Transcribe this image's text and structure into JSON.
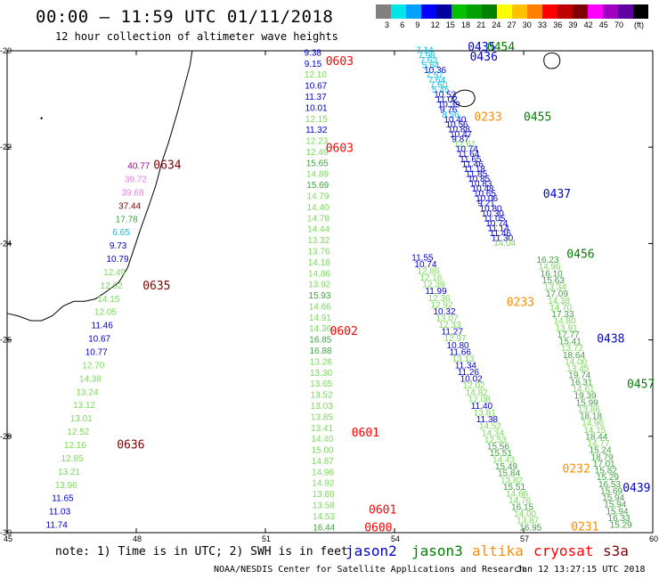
{
  "header": {
    "title": "00:00 – 11:59 UTC 01/11/2018",
    "subtitle": "12 hour collection of altimeter wave heights"
  },
  "colorbar": {
    "colors": [
      "#808080",
      "#00e5e5",
      "#00a0ff",
      "#0000ff",
      "#0000a0",
      "#00c000",
      "#00a000",
      "#008000",
      "#ffff00",
      "#ffc000",
      "#ff8000",
      "#ff0000",
      "#c00000",
      "#800000",
      "#ff00ff",
      "#a000c0",
      "#6000a0",
      "#000000"
    ],
    "labels": [
      "3",
      "6",
      "9",
      "12",
      "15",
      "18",
      "21",
      "24",
      "27",
      "30",
      "33",
      "36",
      "39",
      "42",
      "45",
      "70"
    ],
    "unit": "(ft)"
  },
  "axes": {
    "x_ticks": [
      "45",
      "48",
      "51",
      "54",
      "57",
      "60"
    ],
    "y_ticks": [
      "-20",
      "-22",
      "-24",
      "-26",
      "-28",
      "-30"
    ]
  },
  "palette": {
    "jason2": "#0000c8",
    "jason3": "#008000",
    "altika": "#ff8c00",
    "cryosat": "#ff0000",
    "s3a": "#800000",
    "light_green": "#7ad95a",
    "dark_green": "#40a040",
    "cyan": "#00bfe5",
    "pink": "#e080e0",
    "purple": "#a000a0"
  },
  "tracks": [
    {
      "id": "t1",
      "time": "0603",
      "time2": "0603",
      "satellite": "cryosat",
      "lon0": 51.45,
      "lat0": -20.0,
      "lon1": 51.0,
      "lat1": -30.0
    },
    {
      "id": "t2",
      "time": "0602",
      "time2": "0601",
      "time3": "0601",
      "time4": "0600",
      "satellite": "cryosat",
      "lon0": 51.8,
      "lat0": -21.0,
      "lon1": 53.7,
      "lat1": -30.0
    }
  ],
  "observations": {
    "track_a": [
      {
        "v": "9.38",
        "c": "#0000c8"
      },
      {
        "v": "9.15",
        "c": "#0000c8"
      },
      {
        "v": "12.10",
        "c": "#7ad95a"
      },
      {
        "v": "10.67",
        "c": "#0000c8"
      },
      {
        "v": "11.37",
        "c": "#0000c8"
      },
      {
        "v": "10.01",
        "c": "#0000c8"
      },
      {
        "v": "12.15",
        "c": "#7ad95a"
      },
      {
        "v": "11.32",
        "c": "#0000c8"
      },
      {
        "v": "12.23",
        "c": "#7ad95a"
      },
      {
        "v": "12.49",
        "c": "#7ad95a"
      },
      {
        "v": "15.65",
        "c": "#40a040"
      },
      {
        "v": "14.89",
        "c": "#7ad95a"
      },
      {
        "v": "15.69",
        "c": "#40a040"
      },
      {
        "v": "14.79",
        "c": "#7ad95a"
      },
      {
        "v": "14.40",
        "c": "#7ad95a"
      },
      {
        "v": "14.78",
        "c": "#7ad95a"
      },
      {
        "v": "14.44",
        "c": "#7ad95a"
      },
      {
        "v": "13.32",
        "c": "#7ad95a"
      },
      {
        "v": "13.76",
        "c": "#7ad95a"
      },
      {
        "v": "14.18",
        "c": "#7ad95a"
      },
      {
        "v": "14.86",
        "c": "#7ad95a"
      },
      {
        "v": "13.92",
        "c": "#7ad95a"
      },
      {
        "v": "15.93",
        "c": "#40a040"
      },
      {
        "v": "14.66",
        "c": "#7ad95a"
      },
      {
        "v": "14.91",
        "c": "#7ad95a"
      },
      {
        "v": "14.36",
        "c": "#7ad95a"
      },
      {
        "v": "16.85",
        "c": "#40a040"
      },
      {
        "v": "16.88",
        "c": "#40a040"
      },
      {
        "v": "13.26",
        "c": "#7ad95a"
      },
      {
        "v": "13.30",
        "c": "#7ad95a"
      },
      {
        "v": "13.65",
        "c": "#7ad95a"
      },
      {
        "v": "13.52",
        "c": "#7ad95a"
      },
      {
        "v": "13.03",
        "c": "#7ad95a"
      },
      {
        "v": "13.85",
        "c": "#7ad95a"
      },
      {
        "v": "13.41",
        "c": "#7ad95a"
      },
      {
        "v": "14.40",
        "c": "#7ad95a"
      },
      {
        "v": "15.00",
        "c": "#7ad95a"
      },
      {
        "v": "14.87",
        "c": "#7ad95a"
      },
      {
        "v": "14.98",
        "c": "#7ad95a"
      },
      {
        "v": "14.92",
        "c": "#7ad95a"
      },
      {
        "v": "13.88",
        "c": "#7ad95a"
      },
      {
        "v": "13.58",
        "c": "#7ad95a"
      },
      {
        "v": "14.53",
        "c": "#7ad95a"
      },
      {
        "v": "16.44",
        "c": "#40a040"
      }
    ],
    "track_b": [
      {
        "v": "40.77",
        "c": "#a000a0"
      },
      {
        "v": "39.72",
        "c": "#e080e0"
      },
      {
        "v": "39.68",
        "c": "#e080e0"
      },
      {
        "v": "37.44",
        "c": "#800000"
      },
      {
        "v": "17.78",
        "c": "#40a040"
      },
      {
        "v": "6.65",
        "c": "#00bfe5"
      },
      {
        "v": "9.73",
        "c": "#0000c8"
      },
      {
        "v": "10.79",
        "c": "#0000c8"
      },
      {
        "v": "12.49",
        "c": "#7ad95a"
      },
      {
        "v": "12.92",
        "c": "#7ad95a"
      },
      {
        "v": "14.15",
        "c": "#7ad95a"
      },
      {
        "v": "12.05",
        "c": "#7ad95a"
      },
      {
        "v": "11.46",
        "c": "#0000c8"
      },
      {
        "v": "10.67",
        "c": "#0000c8"
      },
      {
        "v": "10.77",
        "c": "#0000c8"
      },
      {
        "v": "12.70",
        "c": "#7ad95a"
      },
      {
        "v": "14.38",
        "c": "#7ad95a"
      },
      {
        "v": "13.24",
        "c": "#7ad95a"
      },
      {
        "v": "13.12",
        "c": "#7ad95a"
      },
      {
        "v": "13.01",
        "c": "#7ad95a"
      },
      {
        "v": "12.52",
        "c": "#7ad95a"
      },
      {
        "v": "12.16",
        "c": "#7ad95a"
      },
      {
        "v": "12.85",
        "c": "#7ad95a"
      },
      {
        "v": "13.21",
        "c": "#7ad95a"
      },
      {
        "v": "13.96",
        "c": "#7ad95a"
      },
      {
        "v": "11.65",
        "c": "#0000c8"
      },
      {
        "v": "11.03",
        "c": "#0000c8"
      },
      {
        "v": "11.74",
        "c": "#0000c8"
      }
    ],
    "track_c": [
      {
        "v": "7.14",
        "c": "#00bfe5"
      },
      {
        "v": "7.98",
        "c": "#00bfe5"
      },
      {
        "v": "7.63",
        "c": "#00bfe5"
      },
      {
        "v": "5.64",
        "c": "#00bfe5"
      },
      {
        "v": "10.36",
        "c": "#0000c8"
      },
      {
        "v": "7.57",
        "c": "#00bfe5"
      },
      {
        "v": "7.64",
        "c": "#00bfe5"
      },
      {
        "v": "7.60",
        "c": "#00bfe5"
      },
      {
        "v": "5.45",
        "c": "#00bfe5"
      },
      {
        "v": "10.53",
        "c": "#0000c8"
      },
      {
        "v": "11.02",
        "c": "#0000c8"
      },
      {
        "v": "10.39",
        "c": "#0000c8"
      },
      {
        "v": "9.76",
        "c": "#0000c8"
      },
      {
        "v": "8.56",
        "c": "#00bfe5"
      },
      {
        "v": "10.40",
        "c": "#0000c8"
      },
      {
        "v": "10.56",
        "c": "#0000c8"
      },
      {
        "v": "10.88",
        "c": "#0000c8"
      },
      {
        "v": "10.47",
        "c": "#0000c8"
      },
      {
        "v": "9.87",
        "c": "#0000c8"
      },
      {
        "v": "12.61",
        "c": "#7ad95a"
      },
      {
        "v": "10.74",
        "c": "#0000c8"
      },
      {
        "v": "11.64",
        "c": "#0000c8"
      },
      {
        "v": "11.65",
        "c": "#0000c8"
      },
      {
        "v": "11.46",
        "c": "#0000c8"
      },
      {
        "v": "11.18",
        "c": "#0000c8"
      },
      {
        "v": "11.85",
        "c": "#0000c8"
      },
      {
        "v": "10.85",
        "c": "#0000c8"
      },
      {
        "v": "10.83",
        "c": "#0000c8"
      },
      {
        "v": "10.48",
        "c": "#0000c8"
      },
      {
        "v": "10.65",
        "c": "#0000c8"
      },
      {
        "v": "10.06",
        "c": "#0000c8"
      },
      {
        "v": "9.21",
        "c": "#0000c8"
      },
      {
        "v": "10.80",
        "c": "#0000c8"
      },
      {
        "v": "10.30",
        "c": "#0000c8"
      },
      {
        "v": "11.05",
        "c": "#0000c8"
      },
      {
        "v": "10.74",
        "c": "#0000c8"
      },
      {
        "v": "11.14",
        "c": "#0000c8"
      },
      {
        "v": "11.46",
        "c": "#0000c8"
      },
      {
        "v": "11.30",
        "c": "#0000c8"
      },
      {
        "v": "14.04",
        "c": "#7ad95a"
      }
    ],
    "track_d": [
      {
        "v": "11.55",
        "c": "#0000c8"
      },
      {
        "v": "10.74",
        "c": "#0000c8"
      },
      {
        "v": "12.86",
        "c": "#7ad95a"
      },
      {
        "v": "12.16",
        "c": "#7ad95a"
      },
      {
        "v": "12.39",
        "c": "#7ad95a"
      },
      {
        "v": "11.99",
        "c": "#0000c8"
      },
      {
        "v": "12.36",
        "c": "#7ad95a"
      },
      {
        "v": "12.92",
        "c": "#7ad95a"
      },
      {
        "v": "10.32",
        "c": "#0000c8"
      },
      {
        "v": "13.07",
        "c": "#7ad95a"
      },
      {
        "v": "12.33",
        "c": "#7ad95a"
      },
      {
        "v": "11.27",
        "c": "#0000c8"
      },
      {
        "v": "12.97",
        "c": "#7ad95a"
      },
      {
        "v": "10.80",
        "c": "#0000c8"
      },
      {
        "v": "11.66",
        "c": "#0000c8"
      },
      {
        "v": "13.13",
        "c": "#7ad95a"
      },
      {
        "v": "11.34",
        "c": "#0000c8"
      },
      {
        "v": "11.26",
        "c": "#0000c8"
      },
      {
        "v": "10.02",
        "c": "#0000c8"
      },
      {
        "v": "12.02",
        "c": "#7ad95a"
      },
      {
        "v": "14.82",
        "c": "#7ad95a"
      },
      {
        "v": "12.08",
        "c": "#7ad95a"
      },
      {
        "v": "11.40",
        "c": "#0000c8"
      },
      {
        "v": "13.81",
        "c": "#7ad95a"
      },
      {
        "v": "11.38",
        "c": "#0000c8"
      },
      {
        "v": "14.52",
        "c": "#7ad95a"
      },
      {
        "v": "14.34",
        "c": "#7ad95a"
      },
      {
        "v": "12.53",
        "c": "#7ad95a"
      },
      {
        "v": "15.56",
        "c": "#40a040"
      },
      {
        "v": "15.51",
        "c": "#40a040"
      },
      {
        "v": "14.43",
        "c": "#7ad95a"
      },
      {
        "v": "15.49",
        "c": "#40a040"
      },
      {
        "v": "15.84",
        "c": "#40a040"
      },
      {
        "v": "13.82",
        "c": "#7ad95a"
      },
      {
        "v": "15.51",
        "c": "#40a040"
      },
      {
        "v": "14.66",
        "c": "#7ad95a"
      },
      {
        "v": "14.76",
        "c": "#7ad95a"
      },
      {
        "v": "16.15",
        "c": "#40a040"
      },
      {
        "v": "14.00",
        "c": "#7ad95a"
      },
      {
        "v": "13.87",
        "c": "#7ad95a"
      },
      {
        "v": "16.95",
        "c": "#40a040"
      },
      {
        "v": "16.23",
        "c": "#40a040"
      },
      {
        "v": "14.96",
        "c": "#7ad95a"
      },
      {
        "v": "16.10",
        "c": "#40a040"
      },
      {
        "v": "15.63",
        "c": "#40a040"
      },
      {
        "v": "13.34",
        "c": "#7ad95a"
      },
      {
        "v": "17.09",
        "c": "#40a040"
      },
      {
        "v": "14.38",
        "c": "#7ad95a"
      },
      {
        "v": "14.70",
        "c": "#7ad95a"
      },
      {
        "v": "17.33",
        "c": "#40a040"
      },
      {
        "v": "14.80",
        "c": "#7ad95a"
      },
      {
        "v": "13.91",
        "c": "#7ad95a"
      },
      {
        "v": "17.77",
        "c": "#40a040"
      },
      {
        "v": "15.41",
        "c": "#40a040"
      },
      {
        "v": "13.72",
        "c": "#7ad95a"
      },
      {
        "v": "18.64",
        "c": "#40a040"
      },
      {
        "v": "14.00",
        "c": "#7ad95a"
      },
      {
        "v": "13.45",
        "c": "#7ad95a"
      },
      {
        "v": "19.74",
        "c": "#40a040"
      },
      {
        "v": "16.31",
        "c": "#40a040"
      },
      {
        "v": "14.61",
        "c": "#7ad95a"
      },
      {
        "v": "19.39",
        "c": "#40a040"
      },
      {
        "v": "15.99",
        "c": "#40a040"
      },
      {
        "v": "13.86",
        "c": "#7ad95a"
      },
      {
        "v": "18.18",
        "c": "#40a040"
      },
      {
        "v": "14.96",
        "c": "#7ad95a"
      },
      {
        "v": "14.15",
        "c": "#7ad95a"
      },
      {
        "v": "18.44",
        "c": "#40a040"
      },
      {
        "v": "14.77",
        "c": "#7ad95a"
      },
      {
        "v": "15.24",
        "c": "#40a040"
      },
      {
        "v": "18.79",
        "c": "#40a040"
      },
      {
        "v": "17.01",
        "c": "#40a040"
      },
      {
        "v": "15.82",
        "c": "#40a040"
      },
      {
        "v": "15.29",
        "c": "#40a040"
      },
      {
        "v": "16.53",
        "c": "#40a040"
      },
      {
        "v": "15.69",
        "c": "#40a040"
      },
      {
        "v": "15.94",
        "c": "#40a040"
      },
      {
        "v": "15.94",
        "c": "#40a040"
      },
      {
        "v": "15.94",
        "c": "#40a040"
      },
      {
        "v": "16.33",
        "c": "#40a040"
      },
      {
        "v": "15.29",
        "c": "#40a040"
      }
    ]
  },
  "time_labels": [
    {
      "t": "0603",
      "sat": "cryosat"
    },
    {
      "t": "0603",
      "sat": "cryosat"
    },
    {
      "t": "0602",
      "sat": "cryosat"
    },
    {
      "t": "0601",
      "sat": "cryosat"
    },
    {
      "t": "0601",
      "sat": "cryosat"
    },
    {
      "t": "0600",
      "sat": "cryosat"
    },
    {
      "t": "0634",
      "sat": "s3a"
    },
    {
      "t": "0635",
      "sat": "s3a"
    },
    {
      "t": "0636",
      "sat": "s3a"
    },
    {
      "t": "0435",
      "sat": "jason2"
    },
    {
      "t": "0454",
      "sat": "jason3"
    },
    {
      "t": "0436",
      "sat": "jason2"
    },
    {
      "t": "0233",
      "sat": "altika"
    },
    {
      "t": "0455",
      "sat": "jason3"
    },
    {
      "t": "0437",
      "sat": "jason2"
    },
    {
      "t": "0456",
      "sat": "jason3"
    },
    {
      "t": "0233",
      "sat": "altika"
    },
    {
      "t": "0438",
      "sat": "jason2"
    },
    {
      "t": "0457",
      "sat": "jason3"
    },
    {
      "t": "0232",
      "sat": "altika"
    },
    {
      "t": "0439",
      "sat": "jason2"
    },
    {
      "t": "0231",
      "sat": "altika"
    }
  ],
  "footer": {
    "note": "note: 1) Time is in UTC; 2) SWH is in feet",
    "legend": [
      "jason2",
      "jason3",
      "altika",
      "cryosat",
      "s3a"
    ],
    "credit": "NOAA/NESDIS Center for Satellite Applications and Research",
    "timestamp": "Jan 12 13:27:15 UTC 2018"
  }
}
